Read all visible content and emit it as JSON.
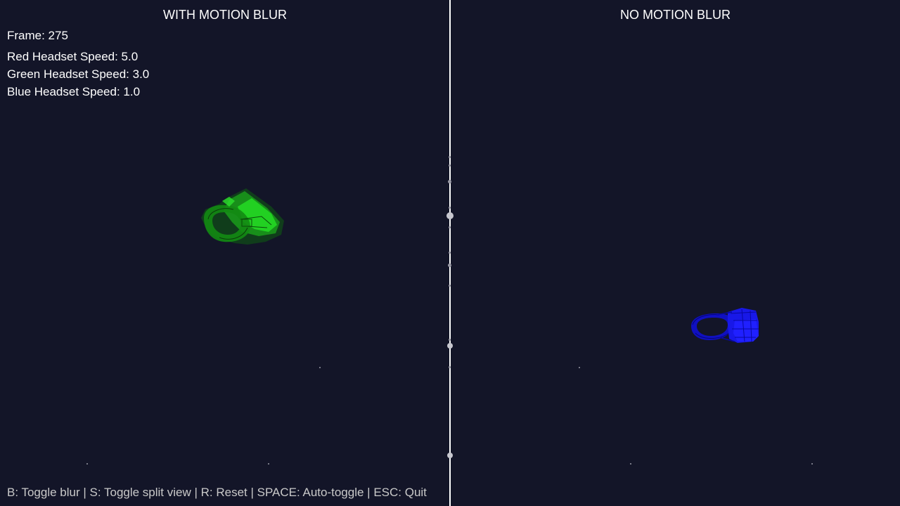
{
  "left_pane": {
    "title": "WITH MOTION BLUR"
  },
  "right_pane": {
    "title": "NO MOTION BLUR"
  },
  "hud": {
    "frame": "Frame: 275",
    "red_speed": "Red Headset Speed: 5.0",
    "green_speed": "Green Headset Speed: 3.0",
    "blue_speed": "Blue Headset Speed: 1.0"
  },
  "controls_hint": "B: Toggle blur | S: Toggle split view | R: Reset | SPACE: Auto-toggle | ESC: Quit",
  "colors": {
    "background": "#131528",
    "divider": "#ffffff",
    "green_headset": "#1fc41f",
    "blue_headset": "#1414e6",
    "hint_text": "#c9c9c9"
  }
}
